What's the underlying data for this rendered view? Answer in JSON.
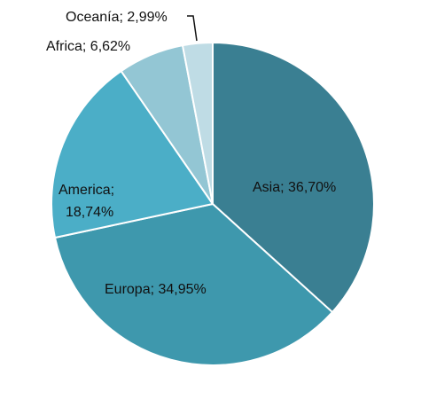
{
  "chart_data": {
    "type": "pie",
    "title": "",
    "start_angle_deg": 0,
    "direction": "clockwise",
    "slices": [
      {
        "category": "Asia",
        "value": 36.7,
        "label": "Asia; 36,70%",
        "color": "#3A7F92"
      },
      {
        "category": "Europa",
        "value": 34.95,
        "label": "Europa; 34,95%",
        "color": "#3E98AD"
      },
      {
        "category": "America",
        "value": 18.74,
        "label_lines": [
          "America;",
          "18,74%"
        ],
        "color": "#4BAEC7"
      },
      {
        "category": "Africa",
        "value": 6.62,
        "label": "Africa; 6,62%",
        "color": "#93C6D4"
      },
      {
        "category": "Oceanía",
        "value": 2.99,
        "label": "Oceanía; 2,99%",
        "color": "#BFDCE5"
      }
    ]
  }
}
